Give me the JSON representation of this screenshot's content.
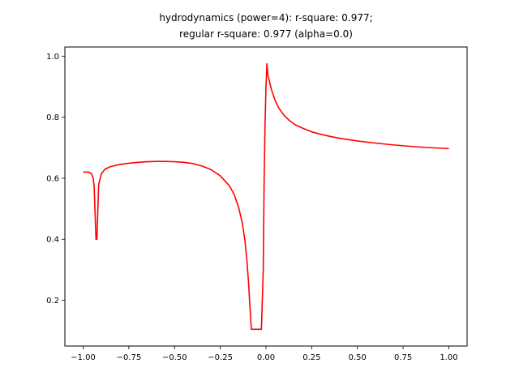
{
  "chart_data": {
    "type": "line",
    "title": "hydrodynamics (power=4): r-square: 0.977;",
    "subtitle": "regular r-square: 0.977 (alpha=0.0)",
    "xlabel": "",
    "ylabel": "",
    "xlim": [
      -1.1,
      1.1
    ],
    "ylim": [
      0.05,
      1.03
    ],
    "xticks": [
      -1.0,
      -0.75,
      -0.5,
      -0.25,
      0.0,
      0.25,
      0.5,
      0.75,
      1.0
    ],
    "xtick_labels": [
      "−1.00",
      "−0.75",
      "−0.50",
      "−0.25",
      "0.00",
      "0.25",
      "0.50",
      "0.75",
      "1.00"
    ],
    "yticks": [
      0.2,
      0.4,
      0.6,
      0.8,
      1.0
    ],
    "ytick_labels": [
      "0.2",
      "0.4",
      "0.6",
      "0.8",
      "1.0"
    ],
    "grid": false,
    "series": [
      {
        "color": "#ff0000",
        "x": [
          -1.0,
          -0.97,
          -0.955,
          -0.945,
          -0.94,
          -0.93,
          -0.925,
          -0.915,
          -0.9,
          -0.88,
          -0.85,
          -0.8,
          -0.75,
          -0.7,
          -0.65,
          -0.6,
          -0.55,
          -0.5,
          -0.45,
          -0.4,
          -0.35,
          -0.3,
          -0.25,
          -0.2,
          -0.175,
          -0.15,
          -0.13,
          -0.115,
          -0.105,
          -0.095,
          -0.09,
          -0.08,
          -0.075,
          -0.06,
          -0.04,
          -0.025,
          -0.015,
          -0.01,
          -0.005,
          0.0,
          0.005,
          0.01,
          0.02,
          0.03,
          0.05,
          0.07,
          0.1,
          0.13,
          0.16,
          0.2,
          0.25,
          0.3,
          0.35,
          0.4,
          0.5,
          0.6,
          0.7,
          0.8,
          0.9,
          1.0
        ],
        "y": [
          0.62,
          0.62,
          0.615,
          0.6,
          0.575,
          0.4,
          0.4,
          0.58,
          0.615,
          0.63,
          0.638,
          0.645,
          0.649,
          0.652,
          0.654,
          0.655,
          0.655,
          0.654,
          0.652,
          0.648,
          0.64,
          0.628,
          0.608,
          0.575,
          0.548,
          0.505,
          0.455,
          0.395,
          0.335,
          0.255,
          0.2,
          0.105,
          0.105,
          0.105,
          0.105,
          0.105,
          0.3,
          0.6,
          0.78,
          0.9,
          0.975,
          0.94,
          0.915,
          0.89,
          0.855,
          0.83,
          0.805,
          0.788,
          0.775,
          0.764,
          0.752,
          0.744,
          0.737,
          0.731,
          0.722,
          0.715,
          0.709,
          0.704,
          0.7,
          0.697
        ]
      }
    ]
  }
}
